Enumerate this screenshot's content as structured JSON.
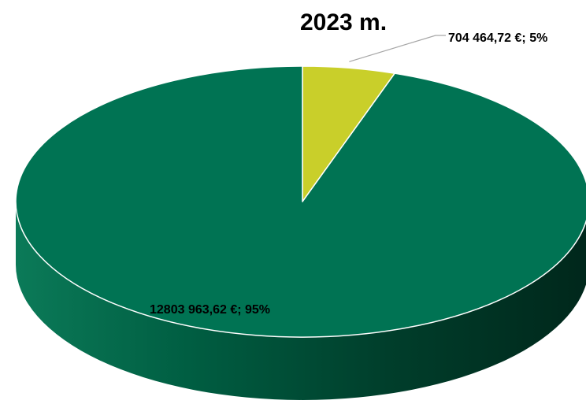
{
  "chart_data": {
    "type": "pie",
    "title": "2023 m.",
    "values": [
      704464.72,
      12803963.62
    ],
    "percentages": [
      5,
      95
    ],
    "data_labels": [
      "704 464,72 €; 5%",
      "12803 963,62 €; 95%"
    ],
    "colors": [
      "#c9cf2a",
      "#007353"
    ],
    "style": "3d",
    "legend": "none"
  }
}
